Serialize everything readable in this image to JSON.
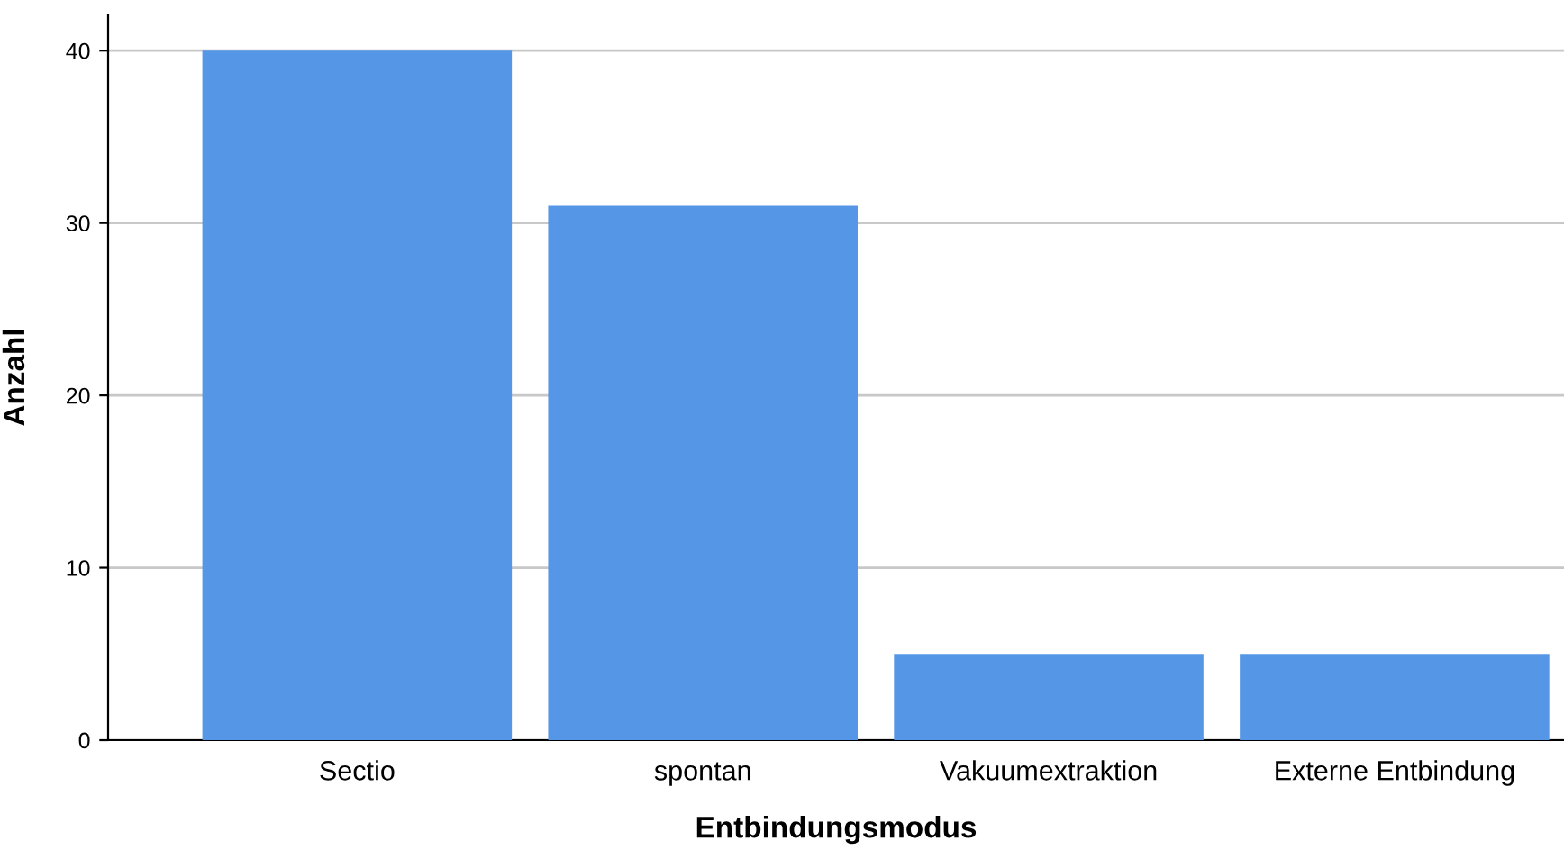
{
  "chart_data": {
    "type": "bar",
    "xlabel": "Entbindungsmodus",
    "ylabel": "Anzahl",
    "categories": [
      "Sectio",
      "spontan",
      "Vakuumextraktion",
      "Externe Entbindung"
    ],
    "values": [
      40,
      31,
      5,
      5
    ],
    "color": "#5596e6",
    "ylim": [
      0,
      42.1
    ],
    "yticks": [
      0,
      10,
      20,
      30,
      40
    ],
    "grid": "y"
  }
}
